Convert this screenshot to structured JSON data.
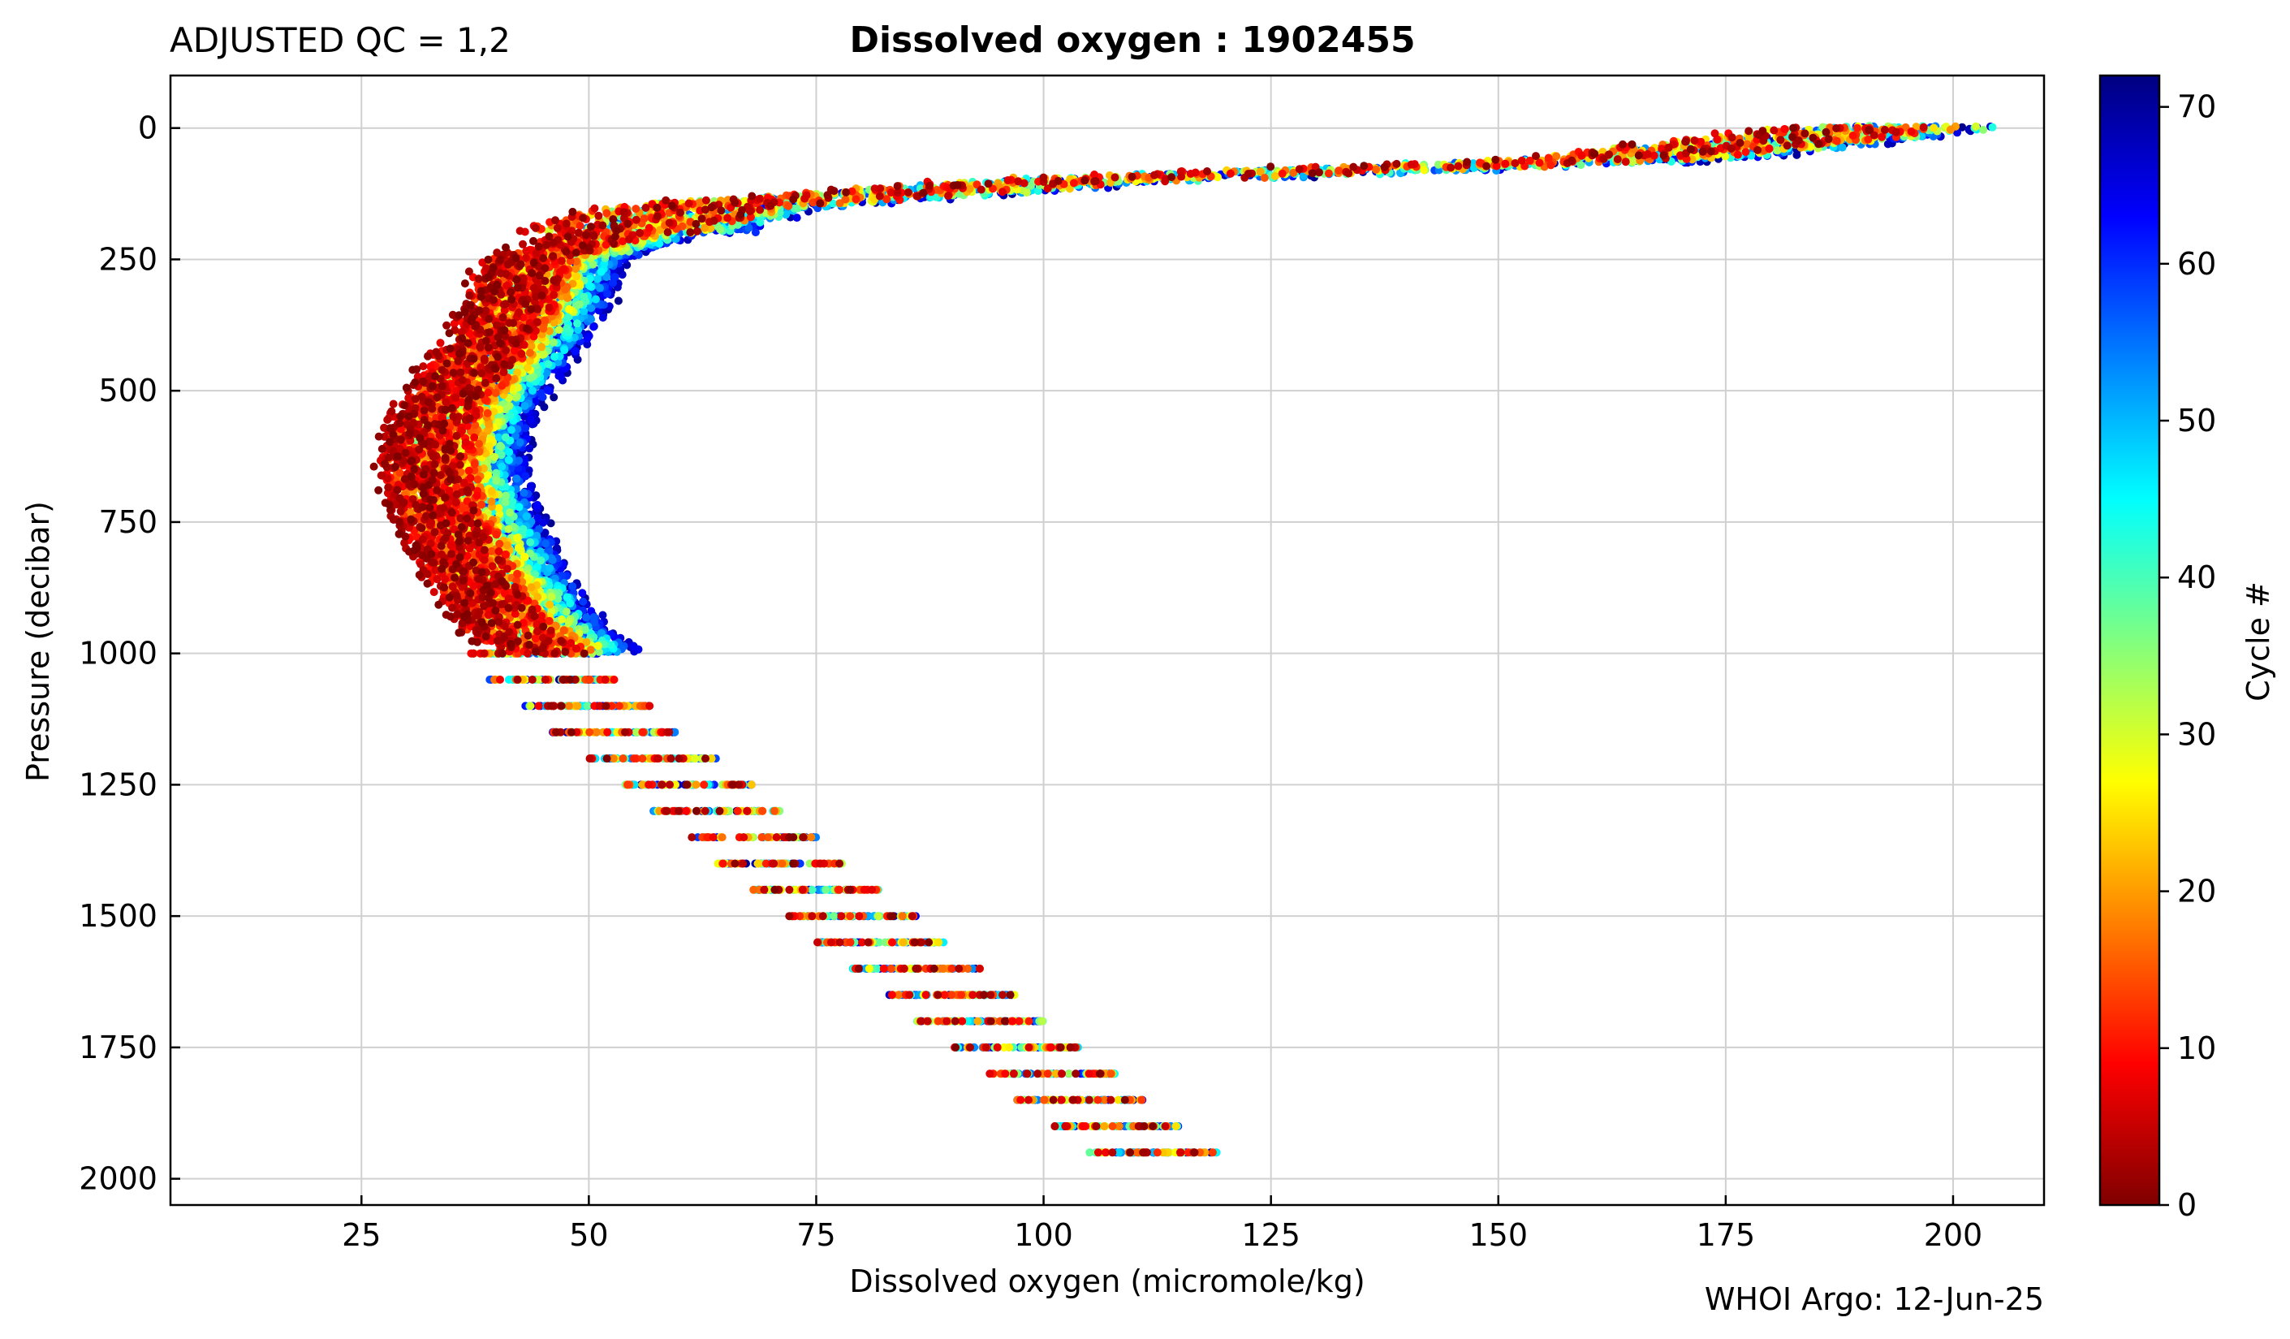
{
  "header": {
    "qc_label": "ADJUSTED QC = 1,2",
    "title": "Dissolved oxygen : 1902455"
  },
  "footer": {
    "credit": "WHOI Argo: 12-Jun-25"
  },
  "colorbar": {
    "label": "Cycle #",
    "range": [
      0,
      72
    ],
    "ticks": [
      "0",
      "10",
      "20",
      "30",
      "40",
      "50",
      "60",
      "70"
    ],
    "colormap": "jet",
    "colors": [
      "#800000",
      "#ff0000",
      "#ff8000",
      "#ffff00",
      "#80ff80",
      "#00ffff",
      "#0080ff",
      "#0000ff",
      "#000080"
    ]
  },
  "chart_data": {
    "type": "scatter",
    "title": "Dissolved oxygen : 1902455",
    "xlabel": "Dissolved oxygen  (micromole/kg)",
    "ylabel": "Pressure  (decibar)",
    "xlim": [
      4,
      210
    ],
    "ylim": [
      2050,
      -100
    ],
    "y_inverted": true,
    "x_ticks": [
      "25",
      "50",
      "75",
      "100",
      "125",
      "150",
      "175",
      "200"
    ],
    "y_ticks": [
      "0",
      "250",
      "500",
      "750",
      "1000",
      "1250",
      "1500",
      "1750",
      "2000"
    ],
    "grid": true,
    "color_by": "cycle",
    "cycle_range": [
      1,
      72
    ],
    "profile_points": [
      {
        "p": 0,
        "o2": 190
      },
      {
        "p": 60,
        "o2": 160
      },
      {
        "p": 100,
        "o2": 100
      },
      {
        "p": 150,
        "o2": 60
      },
      {
        "p": 250,
        "o2": 42
      },
      {
        "p": 350,
        "o2": 40
      },
      {
        "p": 450,
        "o2": 36
      },
      {
        "p": 550,
        "o2": 32
      },
      {
        "p": 650,
        "o2": 31
      },
      {
        "p": 750,
        "o2": 33
      },
      {
        "p": 850,
        "o2": 36
      },
      {
        "p": 950,
        "o2": 40
      },
      {
        "p": 1000,
        "o2": 44
      },
      {
        "p": 1050,
        "o2": 46
      },
      {
        "p": 1100,
        "o2": 50
      },
      {
        "p": 1150,
        "o2": 53
      },
      {
        "p": 1200,
        "o2": 57
      },
      {
        "p": 1250,
        "o2": 61
      },
      {
        "p": 1300,
        "o2": 64
      },
      {
        "p": 1350,
        "o2": 68
      },
      {
        "p": 1400,
        "o2": 71
      },
      {
        "p": 1450,
        "o2": 75
      },
      {
        "p": 1500,
        "o2": 79
      },
      {
        "p": 1550,
        "o2": 82
      },
      {
        "p": 1600,
        "o2": 86
      },
      {
        "p": 1650,
        "o2": 90
      },
      {
        "p": 1700,
        "o2": 93
      },
      {
        "p": 1750,
        "o2": 97
      },
      {
        "p": 1800,
        "o2": 101
      },
      {
        "p": 1850,
        "o2": 104
      },
      {
        "p": 1900,
        "o2": 108
      },
      {
        "p": 1950,
        "o2": 112
      }
    ]
  }
}
